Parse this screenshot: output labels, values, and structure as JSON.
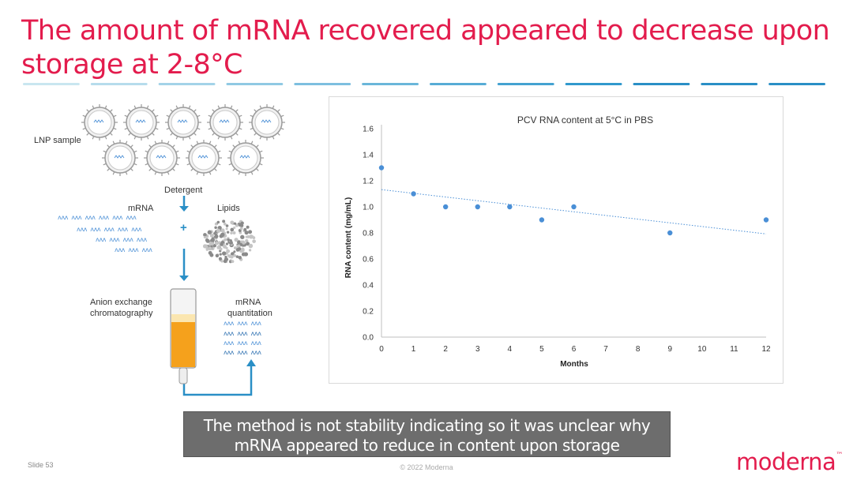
{
  "slide": {
    "title": "The amount of mRNA recovered appeared to decrease upon storage at 2-8°C",
    "callout": "The method is not stability indicating so it was unclear why mRNA appeared to reduce in content upon storage",
    "slide_number": "Slide 53",
    "copyright": "© 2022 Moderna",
    "logo": "moderna",
    "logo_mark": "™",
    "accent_color": "#e31c4d",
    "divider_colors": [
      "#c9e6f0",
      "#b6dcec",
      "#a3d3e8",
      "#90c9e3",
      "#7dbfdf",
      "#6ab6da",
      "#57acd6",
      "#44a2d1",
      "#3199cd",
      "#2a8fc6",
      "#2a8fc6",
      "#2a8fc6"
    ]
  },
  "diagram": {
    "lnp_label": "LNP sample",
    "detergent_label": "Detergent",
    "mrna_label": "mRNA",
    "lipids_label": "Lipids",
    "plus": "+",
    "column_label_1": "Anion exchange",
    "column_label_2": "chromatography",
    "quant_label_1": "mRNA",
    "quant_label_2": "quantitation",
    "wave_glyph": "ʌʌʌ",
    "arrow_color": "#2a8fc6",
    "column_fill_color": "#f5a11c"
  },
  "chart_data": {
    "type": "scatter",
    "title": "PCV RNA content at 5°C in PBS",
    "xlabel": "Months",
    "ylabel": "RNA content (mg/mL)",
    "xlim": [
      0,
      12
    ],
    "ylim": [
      0,
      1.6
    ],
    "x_ticks": [
      "0",
      "1",
      "2",
      "3",
      "4",
      "5",
      "6",
      "7",
      "8",
      "9",
      "10",
      "11",
      "12"
    ],
    "y_ticks": [
      "0.0",
      "0.2",
      "0.4",
      "0.6",
      "0.8",
      "1.0",
      "1.2",
      "1.4",
      "1.6"
    ],
    "grid": false,
    "legend": "none",
    "marker_color": "#4a8fd6",
    "trendline": "linear, dotted",
    "series": [
      {
        "x": [
          0,
          1,
          2,
          3,
          4,
          5,
          6,
          9,
          12
        ],
        "values": [
          1.3,
          1.1,
          1.0,
          1.0,
          1.0,
          0.9,
          1.0,
          0.8,
          0.9
        ]
      }
    ]
  }
}
